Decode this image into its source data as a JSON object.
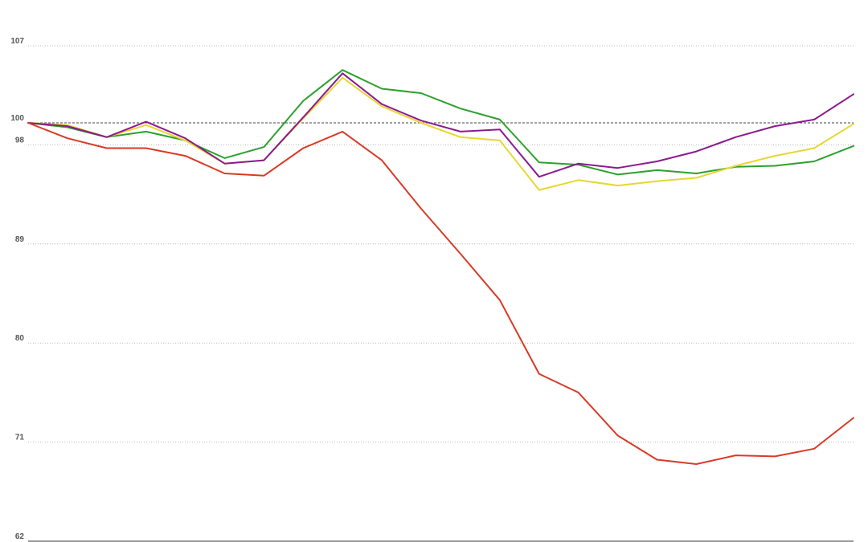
{
  "chart_data": {
    "type": "line",
    "title": "",
    "xlabel": "",
    "ylabel": "",
    "ylim": [
      62,
      107
    ],
    "yticks": [
      62,
      71,
      80,
      89,
      98,
      100,
      107
    ],
    "reference_line": 100,
    "grid": "horizontal dotted",
    "x": [
      0,
      1,
      2,
      3,
      4,
      5,
      6,
      7,
      8,
      9,
      10,
      11,
      12,
      13,
      14,
      15,
      16,
      17,
      18,
      19,
      20,
      21
    ],
    "series": [
      {
        "color": "#2ca02c",
        "values": [
          100,
          99.6,
          98.7,
          99.2,
          98.4,
          96.8,
          97.8,
          102.0,
          104.8,
          103.1,
          102.7,
          101.3,
          100.3,
          96.4,
          96.2,
          95.3,
          95.7,
          95.4,
          96.0,
          96.1,
          96.5,
          97.9
        ]
      },
      {
        "color": "#e6d730",
        "values": [
          100,
          99.8,
          98.7,
          99.8,
          98.4,
          96.3,
          96.6,
          100.4,
          104.1,
          101.5,
          100.0,
          98.7,
          98.4,
          93.9,
          94.8,
          94.3,
          94.7,
          95.0,
          96.1,
          97.0,
          97.7,
          99.9
        ]
      },
      {
        "color": "#8b1a8f",
        "values": [
          100,
          99.7,
          98.7,
          100.1,
          98.6,
          96.3,
          96.6,
          100.5,
          104.5,
          101.7,
          100.2,
          99.2,
          99.4,
          95.1,
          96.3,
          95.9,
          96.5,
          97.4,
          98.7,
          99.7,
          100.3,
          102.6
        ]
      },
      {
        "color": "#d93a26",
        "values": [
          100,
          98.6,
          97.7,
          97.7,
          97.0,
          95.4,
          95.2,
          97.7,
          99.2,
          96.6,
          92.2,
          88.1,
          83.9,
          77.2,
          75.5,
          71.6,
          69.4,
          69.0,
          69.8,
          69.7,
          70.4,
          73.2
        ]
      }
    ]
  }
}
